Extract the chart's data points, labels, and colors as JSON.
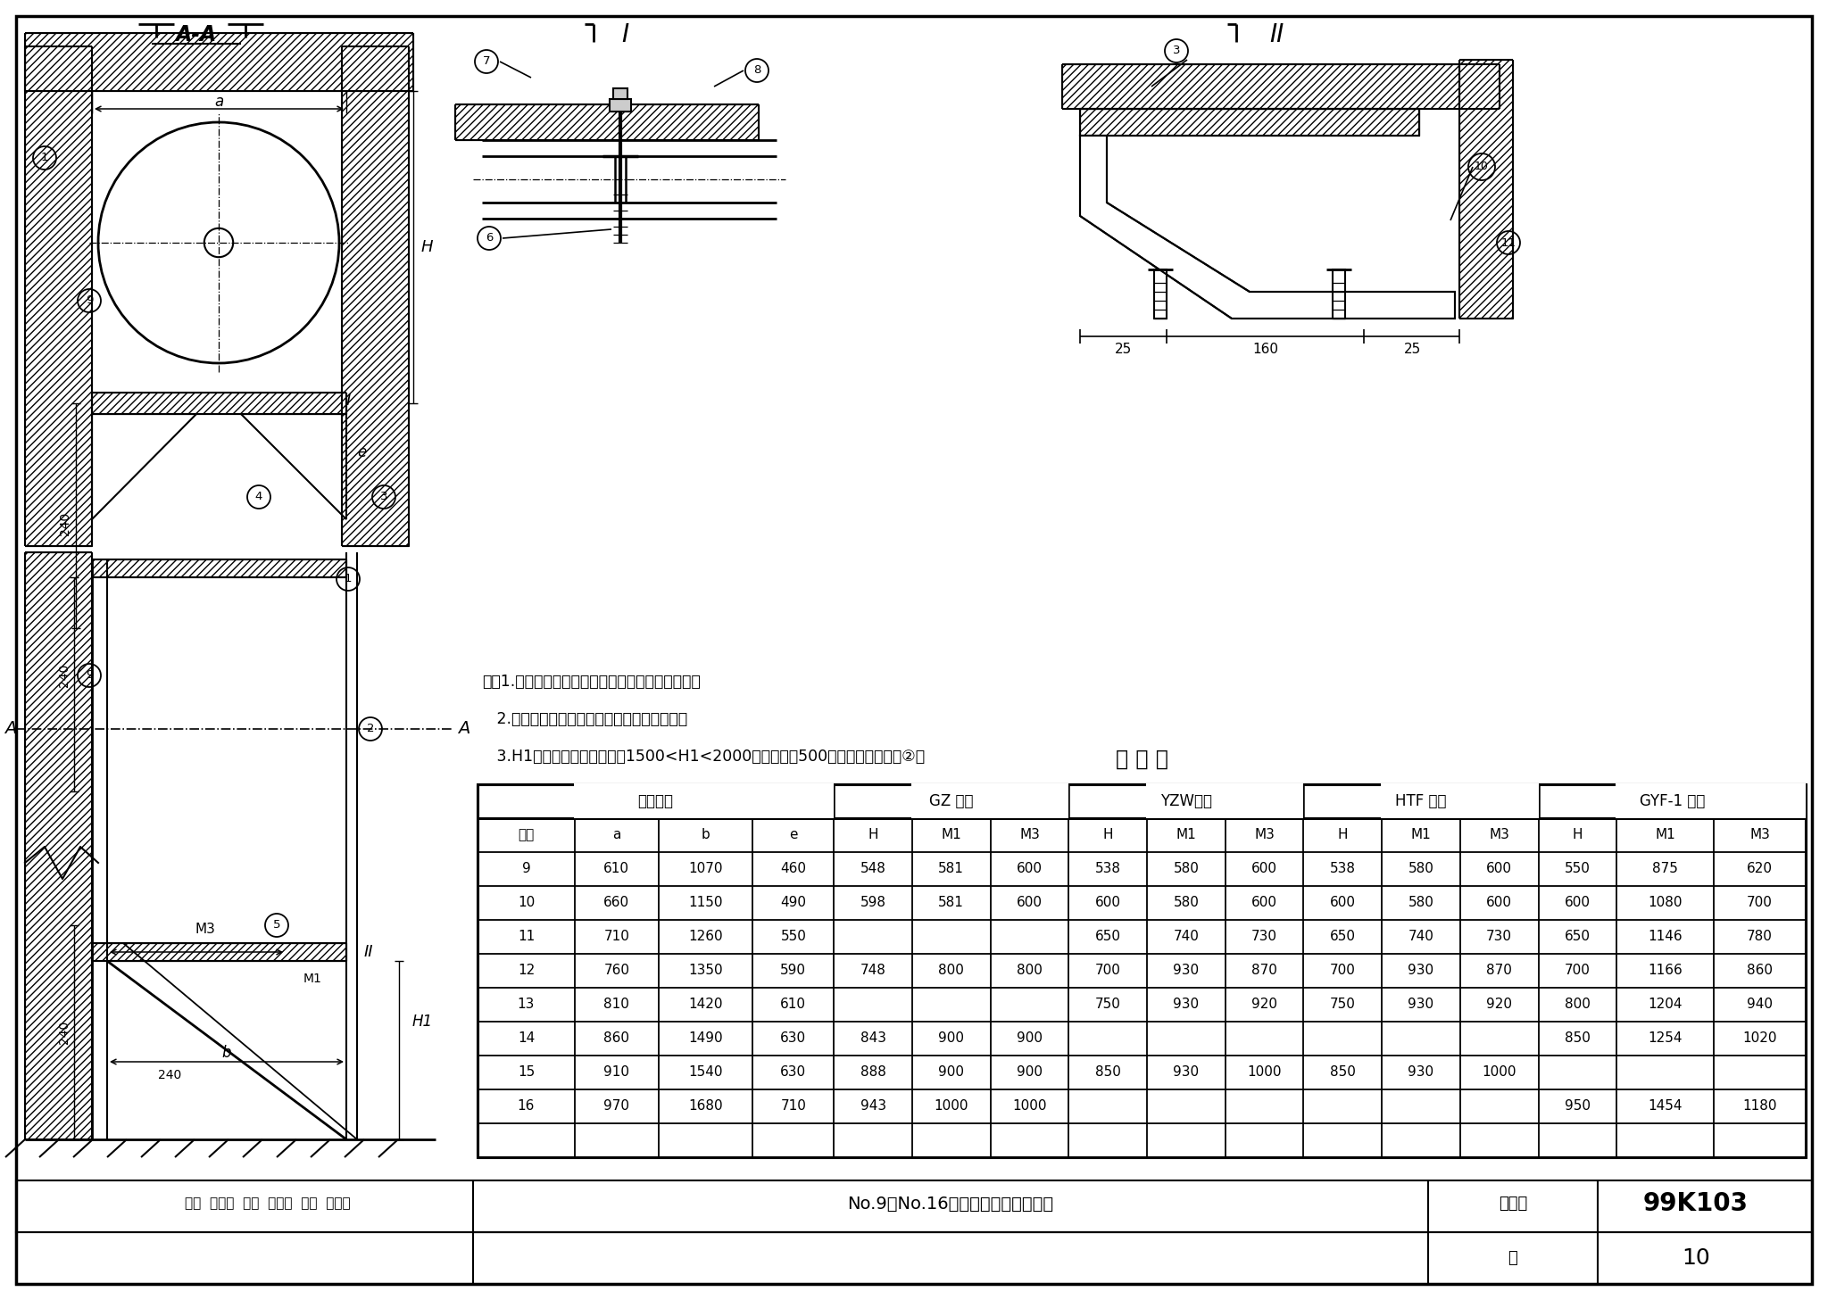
{
  "page_title": "No.9～No.16排烟风机在砖墙上安装",
  "tu_ji_hao": "99K103",
  "ye": "10",
  "table_title": "尺 寸 表",
  "gz_label": "GZ 系列",
  "yzw_label": "YZW系列",
  "htf_label": "HTF 系列",
  "gyf_label": "GYF-1 系列",
  "fj_label": "风机型号",
  "ji_hao": "机号",
  "tu_ji_hao_label": "图集号",
  "ye_label": "页",
  "col_hdrs": [
    "机号",
    "a",
    "b",
    "e",
    "H",
    "M1",
    "M3",
    "H",
    "M1",
    "M3",
    "H",
    "M1",
    "M3",
    "H",
    "M1",
    "M3"
  ],
  "table_data": [
    [
      "9",
      "610",
      "1070",
      "460",
      "548",
      "581",
      "600",
      "538",
      "580",
      "600",
      "538",
      "580",
      "600",
      "550",
      "875",
      "620"
    ],
    [
      "10",
      "660",
      "1150",
      "490",
      "598",
      "581",
      "600",
      "600",
      "580",
      "600",
      "600",
      "580",
      "600",
      "600",
      "1080",
      "700"
    ],
    [
      "11",
      "710",
      "1260",
      "550",
      "",
      "",
      "",
      "650",
      "740",
      "730",
      "650",
      "740",
      "730",
      "650",
      "1146",
      "780"
    ],
    [
      "12",
      "760",
      "1350",
      "590",
      "748",
      "800",
      "800",
      "700",
      "930",
      "870",
      "700",
      "930",
      "870",
      "700",
      "1166",
      "860"
    ],
    [
      "13",
      "810",
      "1420",
      "610",
      "",
      "",
      "",
      "750",
      "930",
      "920",
      "750",
      "930",
      "920",
      "800",
      "1204",
      "940"
    ],
    [
      "14",
      "860",
      "1490",
      "630",
      "843",
      "900",
      "900",
      "",
      "",
      "",
      "",
      "",
      "",
      "850",
      "1254",
      "1020"
    ],
    [
      "15",
      "910",
      "1540",
      "630",
      "888",
      "900",
      "900",
      "850",
      "930",
      "1000",
      "850",
      "930",
      "1000",
      "",
      "",
      ""
    ],
    [
      "16",
      "970",
      "1680",
      "710",
      "943",
      "1000",
      "1000",
      "",
      "",
      "",
      "",
      "",
      "",
      "950",
      "1454",
      "1180"
    ]
  ],
  "note1": "注：1.采用连续焊接，焊缝高度等于焊件最小厚度。",
  "note2": "   2.支架制作安装完毕，不得有歪斜扭曲现象。",
  "note3": "   3.H1由设计选用者确定，剱1500<H1<2000时，距地面500高处加一个横梁件②。",
  "shen_he": "审核",
  "jiao_dui": "校对",
  "she_ji": "设计",
  "bg_color": "#FFFFFF"
}
